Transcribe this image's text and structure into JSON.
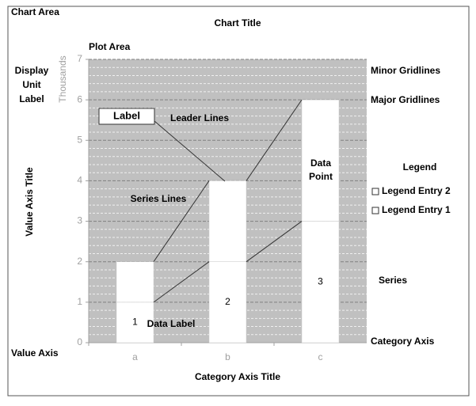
{
  "chart_data": {
    "type": "bar",
    "stacked": true,
    "title": "Chart Title",
    "y_label": "Value Axis Title",
    "x_label": "Category Axis Title",
    "display_unit": "Thousands",
    "categories": [
      "a",
      "b",
      "c"
    ],
    "series": [
      {
        "name": "Legend Entry 1",
        "color": "#ffffff",
        "values": [
          1,
          2,
          3
        ]
      },
      {
        "name": "Legend Entry 2",
        "color": "#ffffff",
        "values": [
          1,
          2,
          3
        ]
      }
    ],
    "data_labels_series": 0,
    "series_lines": true,
    "ylim": [
      0,
      7
    ],
    "yticks": [
      0,
      1,
      2,
      3,
      4,
      5,
      6,
      7
    ],
    "grid": true,
    "minor_grid": true,
    "plot_background": "#c0c0c0",
    "legend_title": "Legend",
    "annotations": {
      "chart_area": "Chart Area",
      "plot_area": "Plot Area",
      "display_unit_label": "Display Unit Label",
      "value_axis": "Value Axis",
      "minor_gridlines": "Minor Gridlines",
      "major_gridlines": "Major Gridlines",
      "series": "Series",
      "category_axis": "Category Axis",
      "label": "Label",
      "leader_lines": "Leader Lines",
      "series_lines": "Series Lines",
      "data_point": "Data Point",
      "data_label": "Data Label"
    }
  }
}
